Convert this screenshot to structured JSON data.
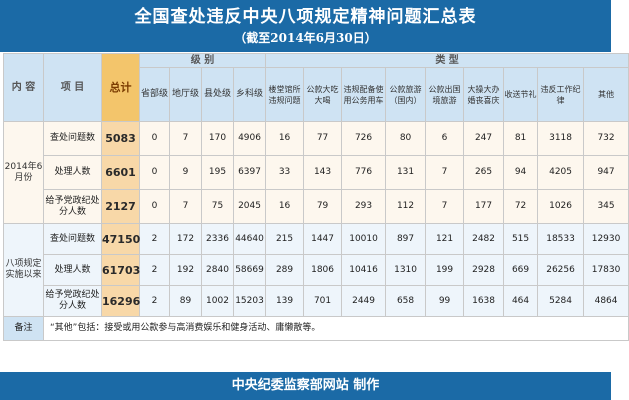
{
  "header": {
    "title": "全国查处违反中央八项规定精神问题汇总表",
    "subtitle": "（截至2014年6月30日）"
  },
  "table": {
    "col_headers": {
      "content": "内 容",
      "item": "项 目",
      "total": "总计",
      "level_group": "级 别",
      "type_group": "类 型",
      "levels": [
        "省部级",
        "地厅级",
        "县处级",
        "乡科级"
      ],
      "types": [
        "楼堂馆所违规问题",
        "公款大吃大喝",
        "违规配备使用公务用车",
        "公款旅游（国内）",
        "公款出国境旅游",
        "大操大办婚丧喜庆",
        "收送节礼",
        "违反工作纪律",
        "其他"
      ]
    },
    "sections": [
      {
        "label": "2014年6月份",
        "rows": [
          {
            "item": "查处问题数",
            "total": "5083",
            "levels": [
              "0",
              "7",
              "170",
              "4906"
            ],
            "types": [
              "16",
              "77",
              "726",
              "80",
              "6",
              "247",
              "81",
              "3118",
              "732"
            ]
          },
          {
            "item": "处理人数",
            "total": "6601",
            "levels": [
              "0",
              "9",
              "195",
              "6397"
            ],
            "types": [
              "33",
              "143",
              "776",
              "131",
              "7",
              "265",
              "94",
              "4205",
              "947"
            ]
          },
          {
            "item": "给予党政纪处分人数",
            "total": "2127",
            "levels": [
              "0",
              "7",
              "75",
              "2045"
            ],
            "types": [
              "16",
              "79",
              "293",
              "112",
              "7",
              "177",
              "72",
              "1026",
              "345"
            ]
          }
        ]
      },
      {
        "label": "八项规定实施以来",
        "rows": [
          {
            "item": "查处问题数",
            "total": "47150",
            "levels": [
              "2",
              "172",
              "2336",
              "44640"
            ],
            "types": [
              "215",
              "1447",
              "10010",
              "897",
              "121",
              "2482",
              "515",
              "18533",
              "12930"
            ]
          },
          {
            "item": "处理人数",
            "total": "61703",
            "levels": [
              "2",
              "192",
              "2840",
              "58669"
            ],
            "types": [
              "289",
              "1806",
              "10416",
              "1310",
              "199",
              "2928",
              "669",
              "26256",
              "17830"
            ]
          },
          {
            "item": "给予党政纪处分人数",
            "total": "16296",
            "levels": [
              "2",
              "89",
              "1002",
              "15203"
            ],
            "types": [
              "139",
              "701",
              "2449",
              "658",
              "99",
              "1638",
              "464",
              "5284",
              "4864"
            ]
          }
        ]
      }
    ],
    "note_label": "备注",
    "note_text": "“其他”包括：接受或用公款参与高消费娱乐和健身活动、庸懒散等。"
  },
  "footer": {
    "text": "中央纪委监察部网站  制作"
  },
  "colors": {
    "banner": "#1b6aa6",
    "header_band": "#cfe3f3",
    "total_header": "#f3c56b",
    "total_cells": "#f8d8a8"
  }
}
